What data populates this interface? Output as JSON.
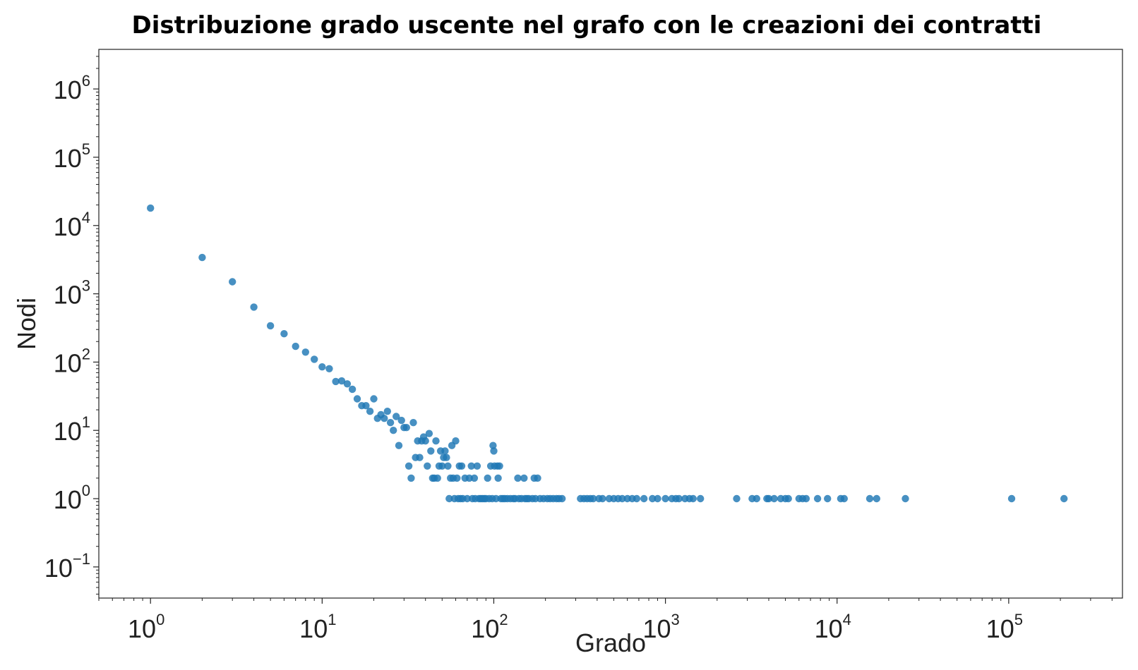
{
  "chart_data": {
    "type": "scatter",
    "title": "Distribuzione grado uscente nel grafo con le creazioni dei contratti",
    "xlabel": "Grado",
    "ylabel": "Nodi",
    "xscale": "log",
    "yscale": "log",
    "xlim": [
      0.5,
      460000
    ],
    "ylim": [
      0.035,
      3800000
    ],
    "grid": false,
    "legend": "none",
    "point_color": "#1f77b4",
    "x_tick_labels": [
      {
        "base": "10",
        "exp": "0",
        "value": 1
      },
      {
        "base": "10",
        "exp": "1",
        "value": 10
      },
      {
        "base": "10",
        "exp": "2",
        "value": 100
      },
      {
        "base": "10",
        "exp": "3",
        "value": 1000
      },
      {
        "base": "10",
        "exp": "4",
        "value": 10000
      },
      {
        "base": "10",
        "exp": "5",
        "value": 100000
      }
    ],
    "y_tick_labels": [
      {
        "base": "10",
        "exp": "−1",
        "value": 0.1
      },
      {
        "base": "10",
        "exp": "0",
        "value": 1
      },
      {
        "base": "10",
        "exp": "1",
        "value": 10
      },
      {
        "base": "10",
        "exp": "2",
        "value": 100
      },
      {
        "base": "10",
        "exp": "3",
        "value": 1000
      },
      {
        "base": "10",
        "exp": "4",
        "value": 10000
      },
      {
        "base": "10",
        "exp": "5",
        "value": 100000
      },
      {
        "base": "10",
        "exp": "6",
        "value": 1000000
      }
    ],
    "points": [
      [
        1,
        18000
      ],
      [
        2,
        3400
      ],
      [
        3,
        1500
      ],
      [
        4,
        640
      ],
      [
        5,
        340
      ],
      [
        6,
        260
      ],
      [
        7,
        170
      ],
      [
        8,
        140
      ],
      [
        9,
        110
      ],
      [
        10,
        85
      ],
      [
        11,
        80
      ],
      [
        12,
        52
      ],
      [
        13,
        53
      ],
      [
        14,
        48
      ],
      [
        15,
        40
      ],
      [
        16,
        29
      ],
      [
        17,
        23
      ],
      [
        18,
        23
      ],
      [
        19,
        19
      ],
      [
        20,
        29
      ],
      [
        21,
        15
      ],
      [
        22,
        17
      ],
      [
        23,
        15
      ],
      [
        24,
        19
      ],
      [
        25,
        13
      ],
      [
        26,
        10
      ],
      [
        27,
        16
      ],
      [
        28,
        6
      ],
      [
        29,
        14
      ],
      [
        30,
        11
      ],
      [
        31,
        11
      ],
      [
        32,
        3
      ],
      [
        33,
        2
      ],
      [
        34,
        13
      ],
      [
        35,
        4
      ],
      [
        36,
        7
      ],
      [
        37,
        4
      ],
      [
        38,
        7
      ],
      [
        39,
        8
      ],
      [
        40,
        7
      ],
      [
        41,
        3
      ],
      [
        42,
        9
      ],
      [
        43,
        5
      ],
      [
        44,
        2
      ],
      [
        45,
        2
      ],
      [
        46,
        7
      ],
      [
        47,
        2
      ],
      [
        48,
        3
      ],
      [
        49,
        5
      ],
      [
        50,
        3
      ],
      [
        51,
        4
      ],
      [
        52,
        5
      ],
      [
        53,
        4
      ],
      [
        54,
        3
      ],
      [
        55,
        1
      ],
      [
        56,
        2
      ],
      [
        57,
        6
      ],
      [
        58,
        2
      ],
      [
        59,
        1
      ],
      [
        60,
        7
      ],
      [
        61,
        2
      ],
      [
        62,
        1
      ],
      [
        63,
        3
      ],
      [
        64,
        1
      ],
      [
        65,
        3
      ],
      [
        66,
        1
      ],
      [
        68,
        2
      ],
      [
        70,
        1
      ],
      [
        72,
        2
      ],
      [
        74,
        3
      ],
      [
        75,
        1
      ],
      [
        77,
        2
      ],
      [
        78,
        1
      ],
      [
        80,
        3
      ],
      [
        82,
        1
      ],
      [
        84,
        1
      ],
      [
        86,
        1
      ],
      [
        88,
        1
      ],
      [
        90,
        1
      ],
      [
        92,
        2
      ],
      [
        94,
        1
      ],
      [
        96,
        3
      ],
      [
        98,
        1
      ],
      [
        99,
        6
      ],
      [
        100,
        5
      ],
      [
        101,
        3
      ],
      [
        103,
        1
      ],
      [
        105,
        3
      ],
      [
        106,
        2
      ],
      [
        108,
        3
      ],
      [
        110,
        1
      ],
      [
        113,
        1
      ],
      [
        116,
        1
      ],
      [
        120,
        1
      ],
      [
        125,
        1
      ],
      [
        130,
        1
      ],
      [
        133,
        1
      ],
      [
        138,
        2
      ],
      [
        140,
        1
      ],
      [
        145,
        1
      ],
      [
        150,
        2
      ],
      [
        152,
        1
      ],
      [
        156,
        1
      ],
      [
        160,
        1
      ],
      [
        168,
        1
      ],
      [
        172,
        2
      ],
      [
        175,
        1
      ],
      [
        180,
        2
      ],
      [
        186,
        1
      ],
      [
        195,
        1
      ],
      [
        205,
        1
      ],
      [
        213,
        1
      ],
      [
        222,
        1
      ],
      [
        232,
        1
      ],
      [
        240,
        1
      ],
      [
        250,
        1
      ],
      [
        320,
        1
      ],
      [
        335,
        1
      ],
      [
        350,
        1
      ],
      [
        365,
        1
      ],
      [
        380,
        1
      ],
      [
        410,
        1
      ],
      [
        430,
        1
      ],
      [
        470,
        1
      ],
      [
        500,
        1
      ],
      [
        530,
        1
      ],
      [
        560,
        1
      ],
      [
        600,
        1
      ],
      [
        640,
        1
      ],
      [
        680,
        1
      ],
      [
        750,
        1
      ],
      [
        840,
        1
      ],
      [
        900,
        1
      ],
      [
        1000,
        1
      ],
      [
        1090,
        1
      ],
      [
        1150,
        1
      ],
      [
        1200,
        1
      ],
      [
        1300,
        1
      ],
      [
        1380,
        1
      ],
      [
        1450,
        1
      ],
      [
        1600,
        1
      ],
      [
        2600,
        1
      ],
      [
        3200,
        1
      ],
      [
        3400,
        1
      ],
      [
        3900,
        1
      ],
      [
        4000,
        1
      ],
      [
        4300,
        1
      ],
      [
        4700,
        1
      ],
      [
        5000,
        1
      ],
      [
        5200,
        1
      ],
      [
        6000,
        1
      ],
      [
        6300,
        1
      ],
      [
        6600,
        1
      ],
      [
        7700,
        1
      ],
      [
        8800,
        1
      ],
      [
        10500,
        1
      ],
      [
        11000,
        1
      ],
      [
        15500,
        1
      ],
      [
        17000,
        1
      ],
      [
        25000,
        1
      ],
      [
        104000,
        1
      ],
      [
        210000,
        1
      ]
    ]
  }
}
